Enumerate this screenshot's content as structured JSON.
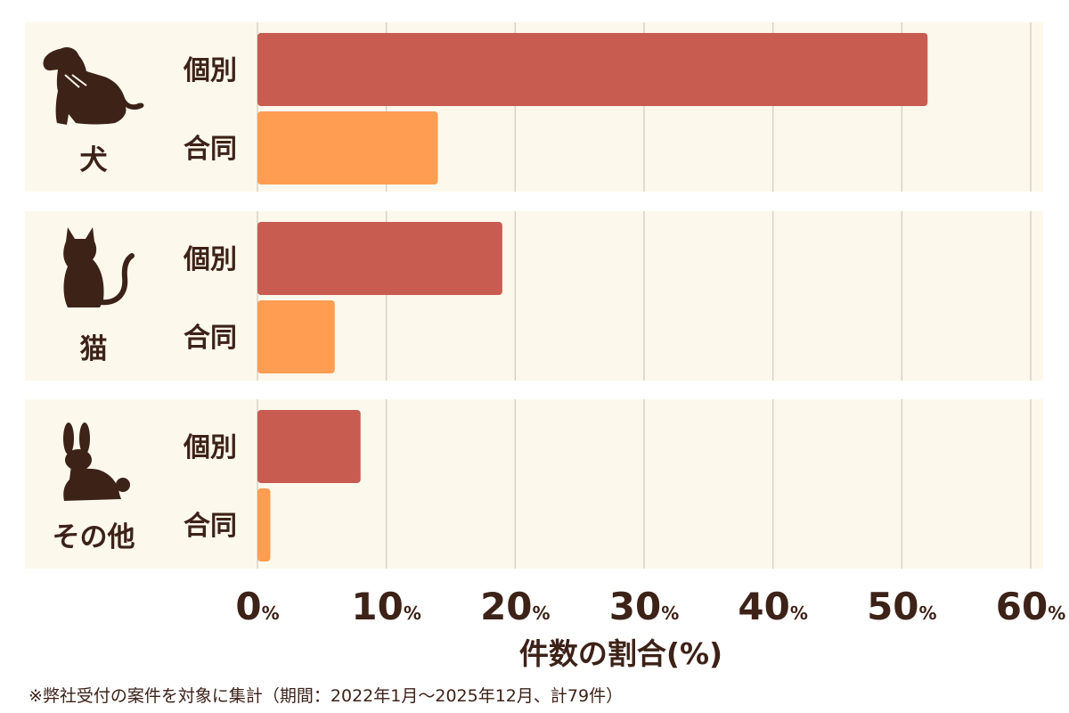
{
  "chart_data": {
    "type": "bar",
    "orientation": "horizontal",
    "groups": [
      {
        "label": "犬",
        "icon": "dog-icon",
        "bars": [
          {
            "label": "個別",
            "value": 52.0
          },
          {
            "label": "合同",
            "value": 14.0
          }
        ]
      },
      {
        "label": "猫",
        "icon": "cat-icon",
        "bars": [
          {
            "label": "個別",
            "value": 19.0
          },
          {
            "label": "合同",
            "value": 6.0
          }
        ]
      },
      {
        "label": "その他",
        "icon": "rabbit-icon",
        "bars": [
          {
            "label": "個別",
            "value": 8.0
          },
          {
            "label": "合同",
            "value": 1.0
          }
        ]
      }
    ],
    "xlim": [
      0,
      60
    ],
    "xticks": [
      0,
      10,
      20,
      30,
      40,
      50,
      60
    ],
    "tick_suffix": "%",
    "xlabel": "件数の割合(%)",
    "grid": true,
    "colors": {
      "個別": "#c85c50",
      "合同": "#ff9d52"
    },
    "band_color": "#fdf8ec",
    "grid_color": "#d9d2c6",
    "text_color": "#3d2218"
  },
  "footnote": "※弊社受付の案件を対象に集計（期間：2022年1月〜2025年12月、計79件）"
}
